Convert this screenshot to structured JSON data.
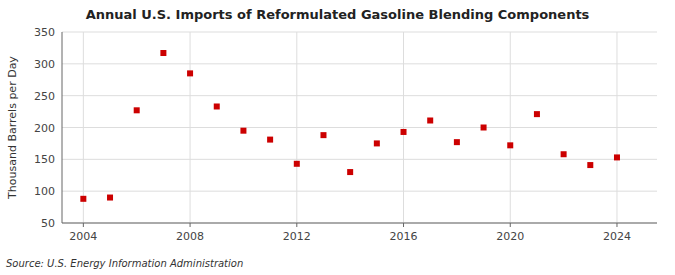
{
  "chart_data": {
    "type": "scatter",
    "title": "Annual U.S. Imports of Reformulated Gasoline Blending Components",
    "ylabel": "Thousand Barrels per Day",
    "source": "Source: U.S. Energy Information Administration",
    "x": [
      2004,
      2005,
      2006,
      2007,
      2008,
      2009,
      2010,
      2011,
      2012,
      2013,
      2014,
      2015,
      2016,
      2017,
      2018,
      2019,
      2020,
      2021,
      2022,
      2023,
      2024
    ],
    "values": [
      88,
      90,
      227,
      317,
      285,
      233,
      195,
      181,
      143,
      188,
      130,
      175,
      193,
      211,
      177,
      200,
      172,
      221,
      158,
      141,
      153
    ],
    "color": "#cc0000",
    "marker": "square",
    "xlim": [
      2003.2,
      2025.5
    ],
    "xticks": [
      2004,
      2008,
      2012,
      2016,
      2020,
      2024
    ],
    "ylim": [
      50,
      350
    ],
    "yticks": [
      50,
      100,
      150,
      200,
      250,
      300,
      350
    ],
    "grid": true
  }
}
